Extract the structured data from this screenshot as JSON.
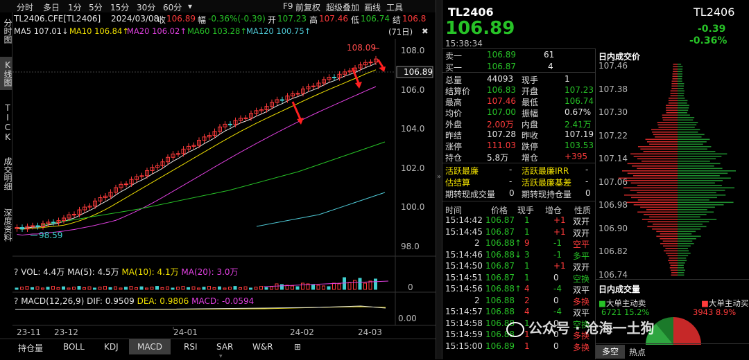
{
  "top_tabs": [
    "分时",
    "多日",
    "1分",
    "5分",
    "15分",
    "30分",
    "60分",
    "▾"
  ],
  "top_right": [
    "F9",
    "前复权",
    "超级叠加",
    "画线",
    "工具"
  ],
  "quote_line": {
    "code": "TL2406.CFE[TL2406]",
    "date": "2024/03/08",
    "close_label": "收",
    "close": "106.89",
    "change_label": "幅",
    "change": "-0.36%(-0.39)",
    "open_label": "开",
    "open": "107.23",
    "high_label": "高",
    "high": "107.46",
    "low_label": "低",
    "low": "106.74",
    "settle_label": "结",
    "settle": "106.8"
  },
  "ma_legend": [
    {
      "text": "MA5 107.01↓",
      "color": "#e6e6e6"
    },
    {
      "text": "MA10 106.84↑",
      "color": "#f0e000"
    },
    {
      "text": "MA20 106.02↑",
      "color": "#e040e0"
    },
    {
      "text": "MA60 103.28↑",
      "color": "#27c227"
    },
    {
      "text": "MA120 100.75↑",
      "color": "#4ec9d6"
    }
  ],
  "window_label": "(71日)",
  "left_nav": [
    "分时图",
    "K线图",
    "TICK",
    "成交明细",
    "深度资料"
  ],
  "price_axis": [
    "108.0",
    "106.0",
    "104.0",
    "102.0",
    "100.0",
    "98.0"
  ],
  "last_price_tag": "106.89",
  "high_mark": "108.09",
  "low_mark": "98.59",
  "vol_legend": [
    {
      "text": "VOL: 4.4万",
      "color": "#e6e6e6"
    },
    {
      "text": "MA(5): 4.5万",
      "color": "#e6e6e6"
    },
    {
      "text": "MA(10): 4.1万",
      "color": "#f0e000"
    },
    {
      "text": "MA(20): 3.0万",
      "color": "#e040e0"
    }
  ],
  "vol_axis": "0",
  "macd_legend": [
    {
      "text": "MACD(12,26,9)",
      "color": "#e6e6e6"
    },
    {
      "text": "DIF: 0.9509",
      "color": "#e6e6e6"
    },
    {
      "text": "DEA: 0.9806",
      "color": "#f0e000"
    },
    {
      "text": "MACD: -0.0594",
      "color": "#e040e0"
    }
  ],
  "macd_axis": "0.00",
  "date_axis": [
    "23-11",
    "23-12",
    "24-01",
    "24-02",
    "24-03"
  ],
  "bottom_tabs": [
    "持仓量",
    "BOLL",
    "KDJ",
    "MACD",
    "RSI",
    "SAR",
    "W&R",
    "⊞"
  ],
  "bottom_tab_active": "MACD",
  "header": {
    "code": "TL2406",
    "code_right": "TL2406",
    "price": "106.89",
    "chg": "-0.39",
    "pct": "-0.36%",
    "time": "15:38:34"
  },
  "orderbook": [
    {
      "label": "卖一",
      "price": "106.89",
      "vol": "61"
    },
    {
      "label": "买一",
      "price": "106.87",
      "vol": "4"
    }
  ],
  "stats": [
    [
      "总量",
      "44093",
      "现手",
      "1"
    ],
    [
      "结算价",
      "106.83",
      "开盘",
      "107.23"
    ],
    [
      "最高",
      "107.46",
      "最低",
      "106.74"
    ],
    [
      "均价",
      "107.00",
      "振幅",
      "0.67%"
    ],
    [
      "外盘",
      "2.00万",
      "内盘",
      "2.41万"
    ],
    [
      "昨结",
      "107.28",
      "昨收",
      "107.19"
    ],
    [
      "涨停",
      "111.03",
      "跌停",
      "103.53"
    ],
    [
      "持仓",
      "5.8万",
      "增仓",
      "+395"
    ]
  ],
  "stats2": [
    [
      "活跃最廉",
      "-",
      "活跃最廉IRR",
      "-"
    ],
    [
      "估结算",
      "-",
      "活跃最廉基差",
      "-"
    ],
    [
      "期转现成交量",
      "0",
      "期转现持仓量",
      "0"
    ]
  ],
  "tick_headers": [
    "时间",
    "价格",
    "现手",
    "增仓",
    "性质"
  ],
  "ticks": [
    [
      "15:14:42",
      "106.87",
      "1",
      "+1",
      "双开"
    ],
    [
      "15:14:45",
      "106.87",
      "1",
      "+1",
      "双开"
    ],
    [
      "2",
      "106.88↑",
      "9",
      "-1",
      "空平"
    ],
    [
      "15:14:46",
      "106.88↓",
      "3",
      "-1",
      "多平"
    ],
    [
      "15:14:50",
      "106.87",
      "1",
      "+1",
      "双开"
    ],
    [
      "15:14:51",
      "106.87",
      "1",
      "0",
      "空换"
    ],
    [
      "15:14:56",
      "106.88↑",
      "4",
      "-4",
      "双平"
    ],
    [
      "2",
      "106.88",
      "2",
      "0",
      "多换"
    ],
    [
      "15:14:57",
      "106.88",
      "4",
      "-4",
      "双平"
    ],
    [
      "15:14:58",
      "106.88",
      "1",
      "0",
      "空换"
    ],
    [
      "15:14:59",
      "106.88",
      "1",
      "0",
      "多换"
    ],
    [
      "15:15:00",
      "106.89",
      "1",
      "0",
      "多换"
    ]
  ],
  "profile": {
    "title": "日内成交价",
    "ticks": [
      "107.46",
      "107.38",
      "107.30",
      "107.22",
      "107.14",
      "107.06",
      "106.98",
      "106.90",
      "106.82",
      "106.74"
    ],
    "vol_title": "日内成交量",
    "sell_label": "大单主动卖",
    "sell_val": "6721",
    "sell_pct": "15.2%",
    "buy_label": "大单主动买",
    "buy_val": "3943",
    "buy_pct": "8.9%",
    "tabs": [
      "多空",
      "热点"
    ]
  },
  "watermark": "公众号 · 沧海一土狗",
  "colors": {
    "up": "#ff3b3b",
    "down": "#27c227",
    "ma5": "#e6e6e6",
    "ma10": "#f0e000",
    "ma20": "#e040e0",
    "ma60": "#27c227",
    "ma120": "#4ec9d6",
    "candle_up": "#ff3b3b",
    "candle_down": "#40d0d0"
  }
}
